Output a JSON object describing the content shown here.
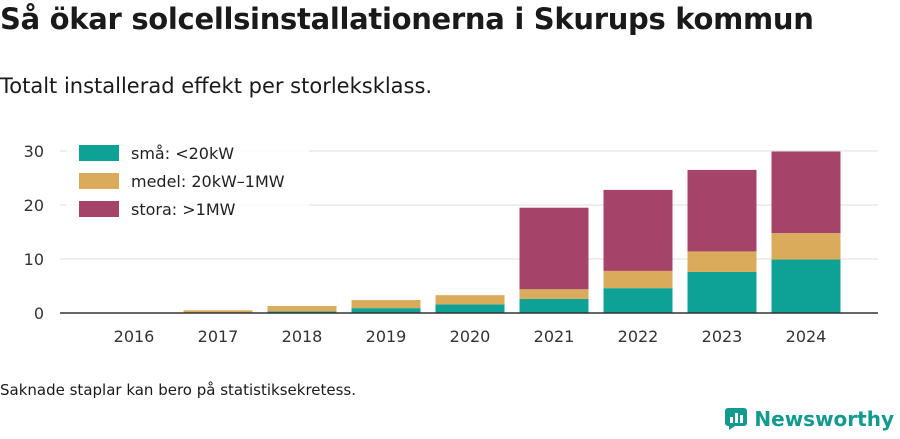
{
  "header": {
    "title": "Så ökar solcellsinstallationerna i Skurups kommun",
    "subtitle": "Totalt installerad effekt per storleksklass."
  },
  "footnote": "Saknade staplar kan bero på statistiksekretess.",
  "brand": {
    "name": "Newsworthy",
    "icon": "newsworthy-logo-icon",
    "color": "#129a8f"
  },
  "chart_data": {
    "type": "bar",
    "stacked": true,
    "categories": [
      "2016",
      "2017",
      "2018",
      "2019",
      "2020",
      "2021",
      "2022",
      "2023",
      "2024"
    ],
    "series": [
      {
        "name": "små: <20kW",
        "color": "#0ea296",
        "values": [
          0,
          0.1,
          0.3,
          0.9,
          1.6,
          2.6,
          4.6,
          7.6,
          9.9
        ]
      },
      {
        "name": "medel: 20kW–1MW",
        "color": "#dbab5c",
        "values": [
          0,
          0.4,
          1.0,
          1.5,
          1.7,
          1.8,
          3.2,
          3.8,
          4.9
        ]
      },
      {
        "name": "stora: >1MW",
        "color": "#a54368",
        "values": [
          0,
          0,
          0,
          0,
          0,
          15.1,
          15.0,
          15.1,
          15.1
        ]
      }
    ],
    "y_ticks": [
      0,
      10,
      20,
      30
    ],
    "ylim": [
      0,
      30
    ],
    "grid": true,
    "legend_position": "top-left",
    "xlabel": "",
    "ylabel": ""
  }
}
